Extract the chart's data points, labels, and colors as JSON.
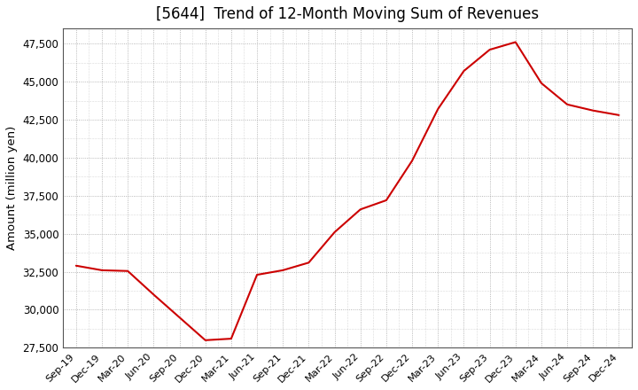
{
  "title": "[5644]  Trend of 12-Month Moving Sum of Revenues",
  "ylabel": "Amount (million yen)",
  "background_color": "#ffffff",
  "line_color": "#cc0000",
  "grid_color": "#999999",
  "ylim": [
    27500,
    48500
  ],
  "yticks": [
    27500,
    30000,
    32500,
    35000,
    37500,
    40000,
    42500,
    45000,
    47500
  ],
  "x_labels": [
    "Sep-19",
    "Dec-19",
    "Mar-20",
    "Jun-20",
    "Sep-20",
    "Dec-20",
    "Mar-21",
    "Jun-21",
    "Sep-21",
    "Dec-21",
    "Mar-22",
    "Jun-22",
    "Sep-22",
    "Dec-22",
    "Mar-23",
    "Jun-23",
    "Sep-23",
    "Dec-23",
    "Mar-24",
    "Jun-24",
    "Sep-24",
    "Dec-24"
  ],
  "values": [
    32900,
    32600,
    32550,
    31000,
    29500,
    28000,
    28100,
    32300,
    32600,
    33100,
    35100,
    36600,
    37200,
    39800,
    43200,
    45700,
    47100,
    47600,
    44900,
    43500,
    43100,
    42800
  ]
}
